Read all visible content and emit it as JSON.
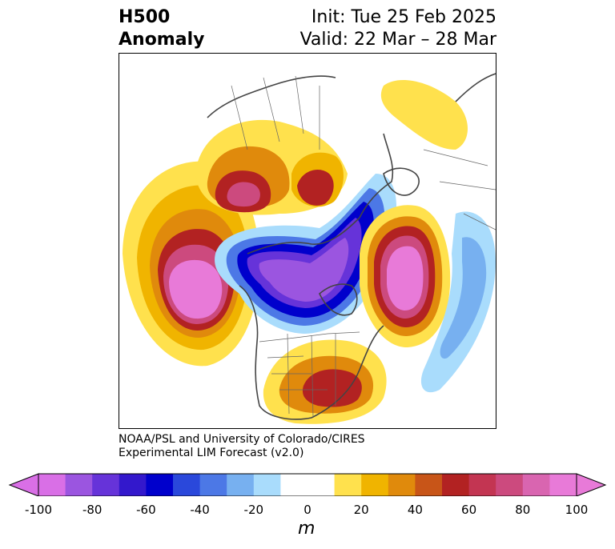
{
  "title": {
    "left_line1": "H500",
    "left_line2": "Anomaly",
    "init": "Init: Tue 25 Feb 2025",
    "valid": "Valid: 22 Mar – 28 Mar"
  },
  "credit": {
    "line1": "NOAA/PSL and University of Colorado/CIRES",
    "line2": "Experimental LIM Forecast (v2.0)"
  },
  "colorbar": {
    "units": "m",
    "ticks": [
      "-100",
      "-80",
      "-60",
      "-40",
      "-20",
      "0",
      "20",
      "40",
      "60",
      "80",
      "100"
    ],
    "colors": [
      "#d96fe6",
      "#9b55e0",
      "#6633d9",
      "#3318cc",
      "#0000cc",
      "#2a48db",
      "#4c78e6",
      "#77b0f0",
      "#a9dcfc",
      "#ffffff",
      "#ffffff",
      "#ffe14d",
      "#f0b400",
      "#e08a0c",
      "#c85518",
      "#b22222",
      "#c33552",
      "#cc4a7e",
      "#d965b0",
      "#e87ad8"
    ]
  },
  "anomalies": [
    {
      "label": "NE Pacific positive",
      "sign": "positive"
    },
    {
      "label": "North Atlantic positive",
      "sign": "positive"
    },
    {
      "label": "SE United States positive",
      "sign": "positive"
    },
    {
      "label": "Siberia positive",
      "sign": "positive"
    },
    {
      "label": "Arctic / Canada negative",
      "sign": "negative"
    },
    {
      "label": "Europe negative",
      "sign": "negative"
    }
  ]
}
